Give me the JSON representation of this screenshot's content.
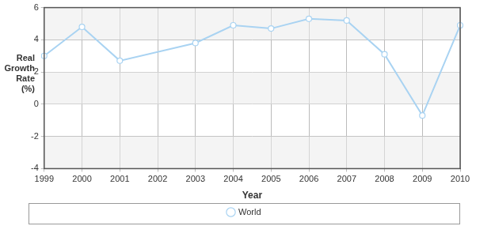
{
  "chart_data": {
    "type": "line",
    "x": [
      1999,
      2000,
      2001,
      2002,
      2003,
      2004,
      2005,
      2006,
      2007,
      2008,
      2009,
      2010
    ],
    "series": [
      {
        "name": "World",
        "color": "#a9d3f2",
        "marker": "circle",
        "values": [
          3.0,
          4.8,
          2.7,
          null,
          3.8,
          4.9,
          4.7,
          5.3,
          5.2,
          3.1,
          -0.7,
          4.9
        ]
      }
    ],
    "xlabel": "Year",
    "ylabel": "Real Growth Rate (%)",
    "xlim": [
      1999,
      2010
    ],
    "xticks": [
      1999,
      2000,
      2001,
      2002,
      2003,
      2004,
      2005,
      2006,
      2007,
      2008,
      2009,
      2010
    ],
    "ylim": [
      -4,
      6
    ],
    "yticks": [
      -4,
      -2,
      0,
      2,
      4,
      6
    ],
    "grid": true,
    "legend": "bottom"
  }
}
